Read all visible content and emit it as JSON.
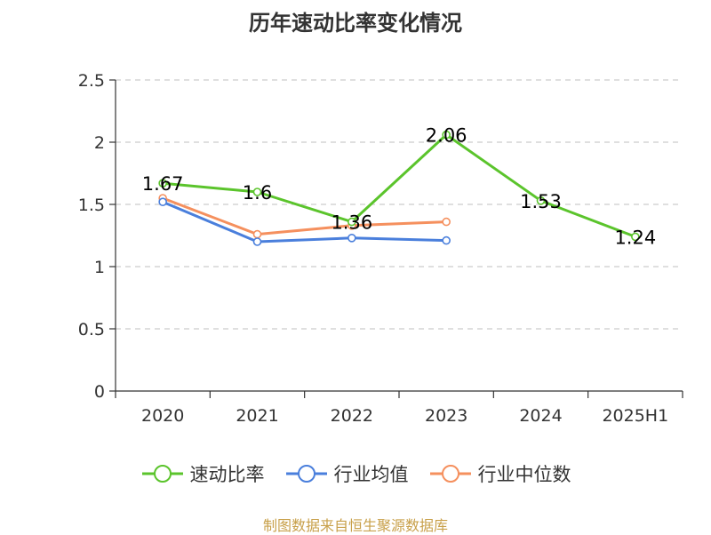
{
  "title": "历年速动比率变化情况",
  "source": "制图数据来自恒生聚源数据库",
  "colors": {
    "series_1": "#5bc42c",
    "series_2": "#4a7fdc",
    "series_3": "#f5905e",
    "grid": "#cccccc",
    "axis": "#333333"
  },
  "chart_data": {
    "type": "line",
    "categories": [
      "2020",
      "2021",
      "2022",
      "2023",
      "2024",
      "2025H1"
    ],
    "ylim": [
      0,
      2.5
    ],
    "yticks": [
      "0",
      "0.5",
      "1",
      "1.5",
      "2",
      "2.5"
    ],
    "grid": true,
    "legend_position": "bottom",
    "series": [
      {
        "name": "速动比率",
        "values": [
          1.67,
          1.6,
          1.36,
          2.06,
          1.53,
          1.24
        ],
        "labels": [
          "1.67",
          "1.6",
          "1.36",
          "2.06",
          "1.53",
          "1.24"
        ],
        "color_key": "series_1"
      },
      {
        "name": "行业均值",
        "values": [
          1.52,
          1.2,
          1.23,
          1.21,
          null,
          null
        ],
        "color_key": "series_2"
      },
      {
        "name": "行业中位数",
        "values": [
          1.55,
          1.26,
          1.33,
          1.36,
          null,
          null
        ],
        "color_key": "series_3"
      }
    ]
  }
}
